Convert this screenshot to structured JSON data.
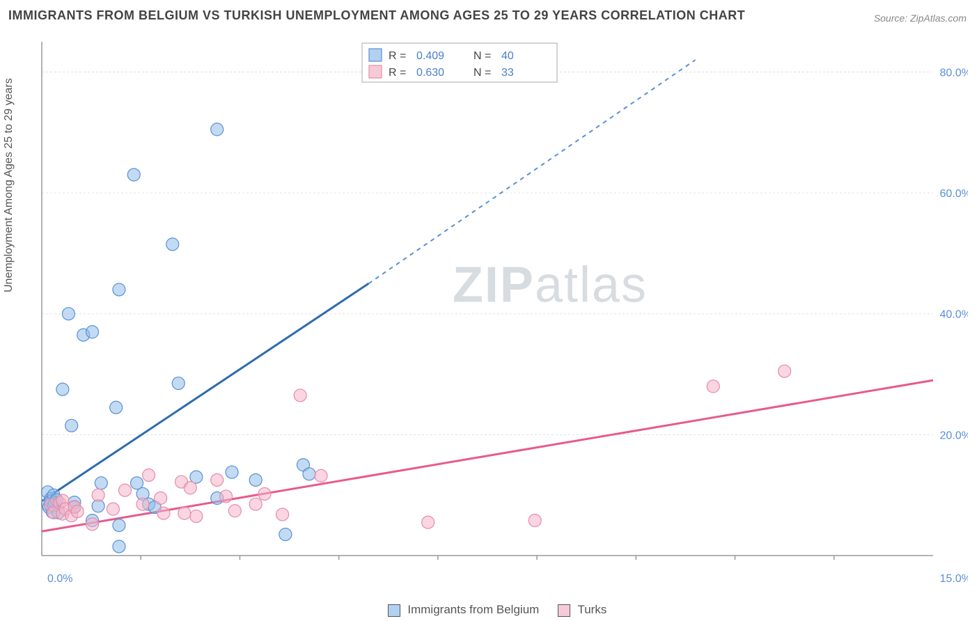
{
  "title": "IMMIGRANTS FROM BELGIUM VS TURKISH UNEMPLOYMENT AMONG AGES 25 TO 29 YEARS CORRELATION CHART",
  "source": "Source: ZipAtlas.com",
  "ylabel": "Unemployment Among Ages 25 to 29 years",
  "watermark": "ZIPatlas",
  "chart": {
    "type": "scatter",
    "xlim": [
      0,
      15
    ],
    "ylim": [
      0,
      85
    ],
    "background_color": "#ffffff",
    "grid_color": "#e0e0e0",
    "axis_color": "#999999",
    "x_ticks": [
      0,
      15
    ],
    "x_tick_labels": [
      "0.0%",
      "15.0%"
    ],
    "y_ticks": [
      20,
      40,
      60,
      80
    ],
    "y_tick_labels": [
      "20.0%",
      "40.0%",
      "60.0%",
      "80.0%"
    ],
    "tick_label_color": "#5a8fd6",
    "tick_fontsize": 16,
    "ylabel_fontsize": 16,
    "marker_radius": 9,
    "series": [
      {
        "name": "Immigrants from Belgium",
        "color_fill": "rgba(144,190,232,0.55)",
        "color_stroke": "#5a8fd6",
        "trend_color": "#2b6cb0",
        "trend_dash_color": "#5a8fd6",
        "trend": {
          "x1": 0,
          "y1": 9,
          "x2": 5.5,
          "y2": 45,
          "dash_x2": 11.0,
          "dash_y2": 82
        },
        "R": "0.409",
        "N": "40",
        "points": [
          [
            0.1,
            10.5
          ],
          [
            0.1,
            8.5
          ],
          [
            0.12,
            8.0
          ],
          [
            0.15,
            9.4
          ],
          [
            0.15,
            9.0
          ],
          [
            0.18,
            7.2
          ],
          [
            0.2,
            10.0
          ],
          [
            0.2,
            8.3
          ],
          [
            0.22,
            8.8
          ],
          [
            0.25,
            9.2
          ],
          [
            0.28,
            7.1
          ],
          [
            0.35,
            27.5
          ],
          [
            0.45,
            40.0
          ],
          [
            0.5,
            21.5
          ],
          [
            0.55,
            8.8
          ],
          [
            0.55,
            8.0
          ],
          [
            0.7,
            36.5
          ],
          [
            0.85,
            37.0
          ],
          [
            0.85,
            5.8
          ],
          [
            0.95,
            8.2
          ],
          [
            1.0,
            12.0
          ],
          [
            1.25,
            24.5
          ],
          [
            1.3,
            44.0
          ],
          [
            1.3,
            5.0
          ],
          [
            1.3,
            1.5
          ],
          [
            1.55,
            63.0
          ],
          [
            1.6,
            12.0
          ],
          [
            1.7,
            10.2
          ],
          [
            1.8,
            8.5
          ],
          [
            1.9,
            8.0
          ],
          [
            2.2,
            51.5
          ],
          [
            2.3,
            28.5
          ],
          [
            2.95,
            70.5
          ],
          [
            2.6,
            13.0
          ],
          [
            2.95,
            9.5
          ],
          [
            3.2,
            13.8
          ],
          [
            3.6,
            12.5
          ],
          [
            4.1,
            3.5
          ],
          [
            4.4,
            15.0
          ],
          [
            4.5,
            13.5
          ]
        ]
      },
      {
        "name": "Turks",
        "color_fill": "rgba(244,180,200,0.55)",
        "color_stroke": "#e88aa8",
        "trend_color": "#e85a8a",
        "trend": {
          "x1": 0,
          "y1": 4,
          "x2": 15,
          "y2": 29
        },
        "R": "0.630",
        "N": "33",
        "points": [
          [
            0.15,
            8.4
          ],
          [
            0.2,
            7.1
          ],
          [
            0.3,
            8.7
          ],
          [
            0.35,
            9.1
          ],
          [
            0.35,
            6.9
          ],
          [
            0.4,
            7.7
          ],
          [
            0.5,
            6.6
          ],
          [
            0.55,
            8.1
          ],
          [
            0.6,
            7.3
          ],
          [
            0.85,
            5.2
          ],
          [
            0.95,
            10.0
          ],
          [
            1.2,
            7.7
          ],
          [
            1.4,
            10.8
          ],
          [
            1.7,
            8.5
          ],
          [
            1.8,
            13.3
          ],
          [
            2.0,
            9.5
          ],
          [
            2.05,
            7.0
          ],
          [
            2.35,
            12.2
          ],
          [
            2.4,
            7.0
          ],
          [
            2.5,
            11.2
          ],
          [
            2.6,
            6.5
          ],
          [
            2.95,
            12.5
          ],
          [
            3.1,
            9.8
          ],
          [
            3.25,
            7.4
          ],
          [
            3.6,
            8.5
          ],
          [
            3.75,
            10.2
          ],
          [
            4.05,
            6.8
          ],
          [
            4.35,
            26.5
          ],
          [
            4.7,
            13.2
          ],
          [
            6.5,
            5.5
          ],
          [
            8.3,
            5.8
          ],
          [
            11.3,
            28.0
          ],
          [
            12.5,
            30.5
          ]
        ]
      }
    ]
  },
  "top_legend": {
    "R_label": "R =",
    "N_label": "N ="
  },
  "bottom_legend": {
    "label1": "Immigrants from Belgium",
    "label2": "Turks"
  }
}
